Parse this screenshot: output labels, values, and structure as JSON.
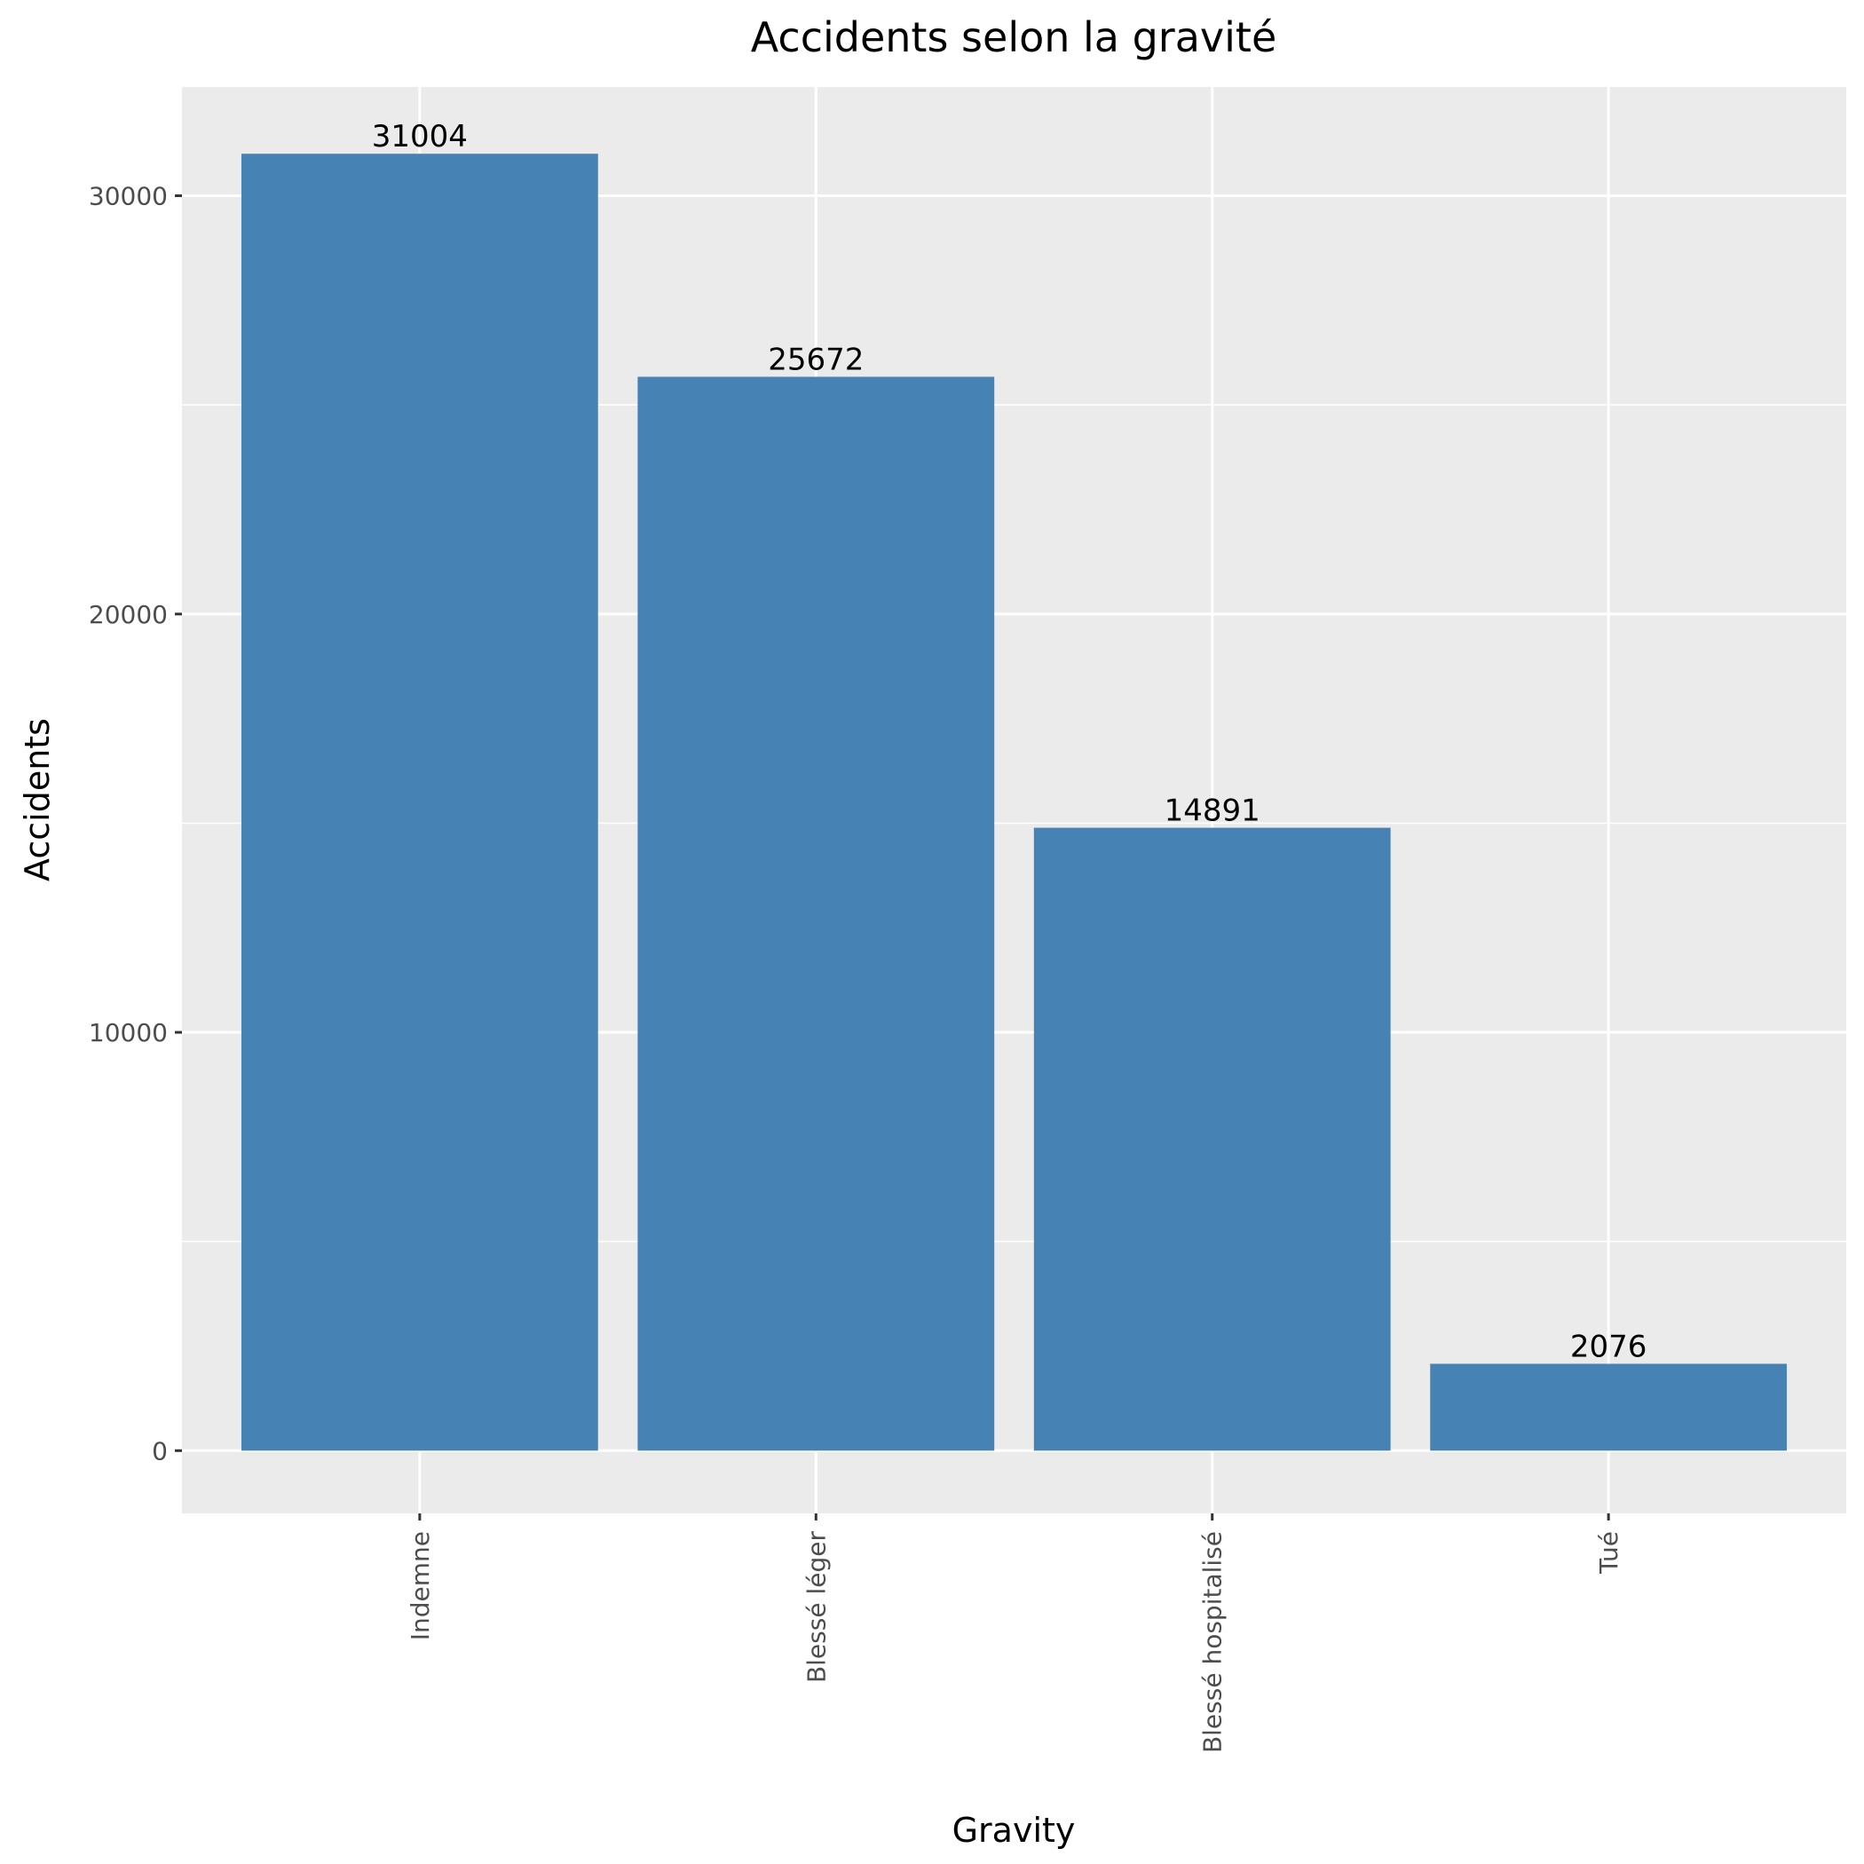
{
  "chart_data": {
    "type": "bar",
    "title": "Accidents selon la gravité",
    "xlabel": "Gravity",
    "ylabel": "Accidents",
    "categories": [
      "Indemne",
      "Blessé léger",
      "Blessé hospitalisé",
      "Tué"
    ],
    "values": [
      31004,
      25672,
      14891,
      2076
    ],
    "data_labels": [
      "31004",
      "25672",
      "14891",
      "2076"
    ],
    "ylim": [
      -1500,
      32600
    ],
    "y_ticks": [
      0,
      10000,
      20000,
      30000
    ],
    "y_tick_labels": [
      "0",
      "10000",
      "20000",
      "30000"
    ],
    "y_minor_ticks": [
      5000,
      15000,
      25000
    ],
    "grid": true,
    "legend": "none",
    "colors": {
      "bar": "#4682b4",
      "panel_background": "#ebebeb",
      "grid": "#ffffff",
      "text": "#000000",
      "tick_text": "#4d4d4d",
      "tick_mark": "#333333"
    }
  }
}
